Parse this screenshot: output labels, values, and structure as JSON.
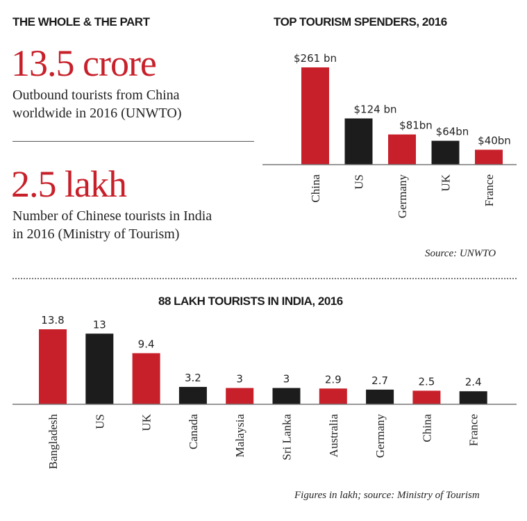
{
  "left_panel": {
    "title": "THE WHOLE & THE PART",
    "stat1": {
      "value": "13.5 crore",
      "desc_line1": "Outbound tourists from China",
      "desc_line2": "worldwide in 2016 (UNWTO)"
    },
    "stat2": {
      "value": "2.5 lakh",
      "desc_line1": "Number of Chinese tourists in India",
      "desc_line2": "in 2016 (Ministry of Tourism)"
    }
  },
  "colors": {
    "red": "#c8202a",
    "black": "#1c1c1c"
  },
  "chart_data": [
    {
      "type": "bar",
      "title": "TOP TOURISM SPENDERS, 2016",
      "categories": [
        "China",
        "US",
        "Germany",
        "UK",
        "France"
      ],
      "values": [
        261,
        124,
        81,
        64,
        40
      ],
      "value_labels": [
        "$261 bn",
        "$124 bn",
        "$81bn",
        "$64bn",
        "$40bn"
      ],
      "bar_colors": [
        "#c8202a",
        "#1c1c1c",
        "#c8202a",
        "#1c1c1c",
        "#c8202a"
      ],
      "ylim": [
        0,
        261
      ],
      "unit": "$ bn",
      "source": "Source: UNWTO"
    },
    {
      "type": "bar",
      "title": "88 LAKH TOURISTS IN INDIA, 2016",
      "categories": [
        "Bangladesh",
        "US",
        "UK",
        "Canada",
        "Malaysia",
        "Sri Lanka",
        "Australia",
        "Germany",
        "China",
        "France"
      ],
      "values": [
        13.8,
        13,
        9.4,
        3.2,
        3,
        3,
        2.9,
        2.7,
        2.5,
        2.4
      ],
      "value_labels": [
        "13.8",
        "13",
        "9.4",
        "3.2",
        "3",
        "3",
        "2.9",
        "2.7",
        "2.5",
        "2.4"
      ],
      "bar_colors": [
        "#c8202a",
        "#1c1c1c",
        "#c8202a",
        "#1c1c1c",
        "#c8202a",
        "#1c1c1c",
        "#c8202a",
        "#1c1c1c",
        "#c8202a",
        "#1c1c1c"
      ],
      "ylim": [
        0,
        13.8
      ],
      "unit": "lakh",
      "source": "Figures in lakh; source: Ministry of Tourism"
    }
  ]
}
